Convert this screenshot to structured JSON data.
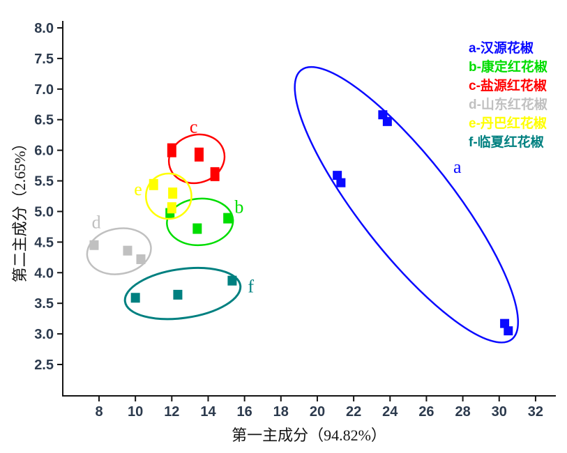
{
  "chart_data": {
    "type": "scatter",
    "title": "",
    "xlabel": "第一主成分（94.82%）",
    "ylabel": "第二主成分（2.65%）",
    "xlim": [
      7,
      33
    ],
    "ylim": [
      2.2,
      8.2
    ],
    "x_ticks": [
      8,
      10,
      12,
      14,
      16,
      18,
      20,
      22,
      24,
      26,
      28,
      30,
      32
    ],
    "y_ticks": [
      2.5,
      3.0,
      3.5,
      4.0,
      4.5,
      5.0,
      5.5,
      6.0,
      6.5,
      7.0,
      7.5,
      8.0
    ],
    "grid": false,
    "legend_position": "top-right",
    "series": [
      {
        "id": "a",
        "name": "a-汉源花椒",
        "color": "#0A0AFF",
        "marker_h": 13,
        "points": [
          [
            23.6,
            6.58
          ],
          [
            23.85,
            6.47
          ],
          [
            21.1,
            5.59
          ],
          [
            21.3,
            5.47
          ],
          [
            30.3,
            3.17
          ],
          [
            30.5,
            3.05
          ]
        ],
        "ellipse": {
          "cx": 24.9,
          "cy": 5.11,
          "rx": 9.4,
          "ry": 0.77,
          "rot": 52,
          "stroke_w": 2.5
        },
        "label": {
          "text": "a",
          "x": 27.7,
          "y": 5.72
        }
      },
      {
        "id": "b",
        "name": "b-康定红花椒",
        "color": "#00DD00",
        "marker_h": 15,
        "points": [
          [
            11.9,
            4.97
          ],
          [
            13.4,
            4.72
          ],
          [
            15.08,
            4.89
          ]
        ],
        "ellipse": {
          "cx": 13.55,
          "cy": 4.83,
          "rx": 1.82,
          "ry": 0.38,
          "rot": -4,
          "stroke_w": 2.5
        },
        "label": {
          "text": "b",
          "x": 15.7,
          "y": 5.07
        }
      },
      {
        "id": "c",
        "name": "c-盐源红花椒",
        "color": "#FF0000",
        "marker_h": 20,
        "points": [
          [
            12.0,
            6.0
          ],
          [
            13.5,
            5.93
          ],
          [
            14.37,
            5.61
          ]
        ],
        "ellipse": {
          "cx": 13.37,
          "cy": 5.86,
          "rx": 1.55,
          "ry": 0.39,
          "rot": -18,
          "stroke_w": 2.5
        },
        "label": {
          "text": "c",
          "x": 13.2,
          "y": 6.38
        }
      },
      {
        "id": "d",
        "name": "d-山东红花椒",
        "color": "#C0C0C0",
        "marker_h": 14,
        "points": [
          [
            7.73,
            4.45
          ],
          [
            9.57,
            4.36
          ],
          [
            10.3,
            4.22
          ]
        ],
        "ellipse": {
          "cx": 9.1,
          "cy": 4.35,
          "rx": 1.77,
          "ry": 0.37,
          "rot": -10,
          "stroke_w": 2.5
        },
        "label": {
          "text": "d",
          "x": 7.85,
          "y": 4.82
        }
      },
      {
        "id": "e",
        "name": "e-丹巴红花椒",
        "color": "#FFFF00",
        "marker_h": 16,
        "points": [
          [
            11.0,
            5.44
          ],
          [
            12.05,
            5.3
          ],
          [
            12.0,
            5.06
          ]
        ],
        "ellipse": {
          "cx": 11.83,
          "cy": 5.25,
          "rx": 1.25,
          "ry": 0.37,
          "rot": 0,
          "stroke_w": 2.5
        },
        "label": {
          "text": "e",
          "x": 10.15,
          "y": 5.36
        }
      },
      {
        "id": "f",
        "name": "f-临夏红花椒",
        "color": "#008080",
        "marker_h": 14,
        "points": [
          [
            10.0,
            3.59
          ],
          [
            12.33,
            3.64
          ],
          [
            15.32,
            3.87
          ]
        ],
        "ellipse": {
          "cx": 12.6,
          "cy": 3.66,
          "rx": 3.2,
          "ry": 0.4,
          "rot": -8,
          "stroke_w": 3
        },
        "label": {
          "text": "f",
          "x": 16.35,
          "y": 3.77
        }
      }
    ]
  },
  "legend": {
    "items": [
      {
        "label": "a-汉源花椒",
        "color": "#0A0AFF"
      },
      {
        "label": "b-康定红花椒",
        "color": "#00DD00"
      },
      {
        "label": "c-盐源红花椒",
        "color": "#FF0000"
      },
      {
        "label": "d-山东红花椒",
        "color": "#C0C0C0"
      },
      {
        "label": "e-丹巴红花椒",
        "color": "#FFFF00"
      },
      {
        "label": "f-临夏红花椒",
        "color": "#008080"
      }
    ]
  },
  "colors": {
    "axis": "#141414",
    "tick_text": "#2c3a4d",
    "background": "#ffffff"
  }
}
